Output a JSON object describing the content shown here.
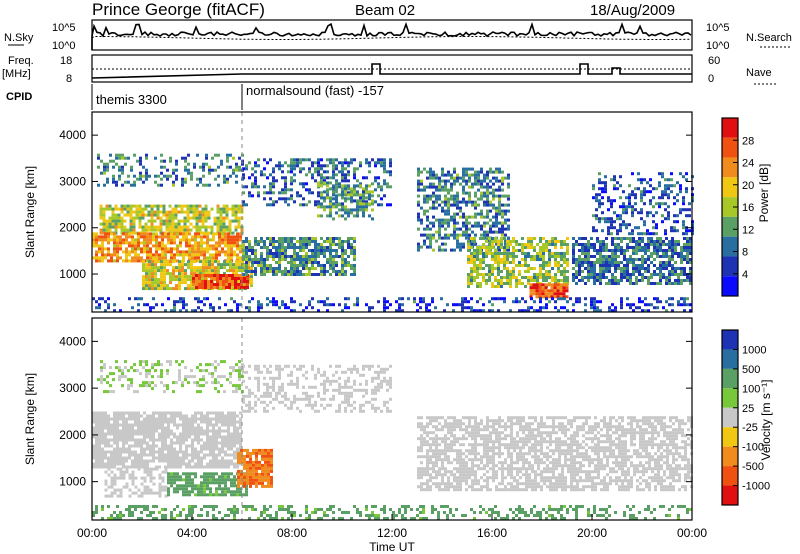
{
  "header": {
    "station": "Prince George (fitACF)",
    "beam": "Beam 02",
    "date": "18/Aug/2009"
  },
  "strip": {
    "nsky_label": "N.Sky",
    "nsearch_label": "N.Search",
    "freq_label": "Freq.",
    "freq_unit": "[MHz]",
    "nave_label": "Nave",
    "cpid_label": "CPID",
    "nsky_ticks": [
      "10^5",
      "10^0"
    ],
    "nsearch_ticks": [
      "10^5",
      "10^0"
    ],
    "freq_ticks": [
      "18",
      "8"
    ],
    "nave_ticks": [
      "60",
      "0"
    ],
    "cpid_entries": [
      {
        "name": "themis 3300",
        "start_hour": 0
      },
      {
        "name": "normalsound (fast) -157",
        "start_hour": 6
      }
    ]
  },
  "chart_data": [
    {
      "type": "heatmap",
      "panel": "power",
      "ylabel": "Slant Range [km]",
      "xlabel": "",
      "ylim": [
        180,
        4500
      ],
      "yticks": [
        "4000",
        "3000",
        "2000",
        "1000"
      ],
      "colorbar_label": "Power [dB]",
      "colorbar_ticks": [
        "28",
        "24",
        "20",
        "16",
        "12",
        "8",
        "4"
      ],
      "colorbar_colors": [
        "#e01010",
        "#f05010",
        "#f08c1e",
        "#f0c814",
        "#a8c828",
        "#5aa064",
        "#286ea0",
        "#1e32b4",
        "#0a0aff"
      ],
      "regions": [
        {
          "t0": 0.2,
          "t1": 6.0,
          "r0": 2900,
          "r1": 3600,
          "level": 10,
          "density": 0.35
        },
        {
          "t0": 0.3,
          "t1": 6.0,
          "r0": 1900,
          "r1": 2500,
          "level": 17,
          "density": 0.75
        },
        {
          "t0": 0.0,
          "t1": 6.0,
          "r0": 1300,
          "r1": 1900,
          "level": 22,
          "density": 0.8
        },
        {
          "t0": 2.0,
          "t1": 6.4,
          "r0": 700,
          "r1": 1300,
          "level": 18,
          "density": 0.8
        },
        {
          "t0": 4.0,
          "t1": 6.2,
          "r0": 700,
          "r1": 1000,
          "level": 27,
          "density": 0.9
        },
        {
          "t0": 6.0,
          "t1": 12.0,
          "r0": 2500,
          "r1": 3500,
          "level": 8,
          "density": 0.4
        },
        {
          "t0": 6.0,
          "t1": 10.5,
          "r0": 1000,
          "r1": 1800,
          "level": 11,
          "density": 0.75
        },
        {
          "t0": 9.0,
          "t1": 11.2,
          "r0": 2200,
          "r1": 3000,
          "level": 12,
          "density": 0.55
        },
        {
          "t0": 13.0,
          "t1": 16.6,
          "r0": 1500,
          "r1": 3300,
          "level": 10,
          "density": 0.55
        },
        {
          "t0": 15.0,
          "t1": 19.0,
          "r0": 700,
          "r1": 1800,
          "level": 15,
          "density": 0.65
        },
        {
          "t0": 17.5,
          "t1": 19.0,
          "r0": 500,
          "r1": 800,
          "level": 27,
          "density": 0.9
        },
        {
          "t0": 19.2,
          "t1": 24.0,
          "r0": 800,
          "r1": 1800,
          "level": 9,
          "density": 0.7
        },
        {
          "t0": 20.0,
          "t1": 24.0,
          "r0": 1900,
          "r1": 3200,
          "level": 7,
          "density": 0.35
        },
        {
          "t0": 0.0,
          "t1": 24.0,
          "r0": 180,
          "r1": 500,
          "level": 6,
          "density": 0.3
        }
      ]
    },
    {
      "type": "heatmap",
      "panel": "velocity",
      "ylabel": "Slant Range [km]",
      "xlabel": "Time UT",
      "ylim": [
        180,
        4500
      ],
      "yticks": [
        "4000",
        "3000",
        "2000",
        "1000"
      ],
      "xticks": [
        "00:00",
        "04:00",
        "08:00",
        "12:00",
        "16:00",
        "20:00",
        "00:00"
      ],
      "colorbar_label": "Velocity [m s⁻¹]",
      "colorbar_ticks": [
        "1000",
        "500",
        "100",
        "25",
        "-25",
        "-100",
        "-500",
        "-1000"
      ],
      "colorbar_colors": [
        "#1e32b4",
        "#286ea0",
        "#5aa064",
        "#78c83c",
        "#c8c8c8",
        "#f0c814",
        "#f08c1e",
        "#f05010",
        "#e01010"
      ],
      "regions": [
        {
          "t0": 0.2,
          "t1": 6.0,
          "r0": 2900,
          "r1": 3600,
          "level": 25,
          "density": 0.35
        },
        {
          "t0": 0.0,
          "t1": 6.0,
          "r0": 1300,
          "r1": 2500,
          "level": 0,
          "density": 0.8
        },
        {
          "t0": 0.5,
          "t1": 3.0,
          "r0": 700,
          "r1": 1300,
          "level": 0,
          "density": 0.5
        },
        {
          "t0": 3.0,
          "t1": 6.2,
          "r0": 700,
          "r1": 1200,
          "level": 150,
          "density": 0.8
        },
        {
          "t0": 5.8,
          "t1": 7.2,
          "r0": 900,
          "r1": 1700,
          "level": -450,
          "density": 0.85
        },
        {
          "t0": 6.0,
          "t1": 12.0,
          "r0": 2500,
          "r1": 3500,
          "level": 0,
          "density": 0.4
        },
        {
          "t0": 13.0,
          "t1": 24.0,
          "r0": 800,
          "r1": 2400,
          "level": 0,
          "density": 0.65
        },
        {
          "t0": 0.0,
          "t1": 24.0,
          "r0": 180,
          "r1": 500,
          "level": 150,
          "density": 0.35
        }
      ]
    }
  ]
}
